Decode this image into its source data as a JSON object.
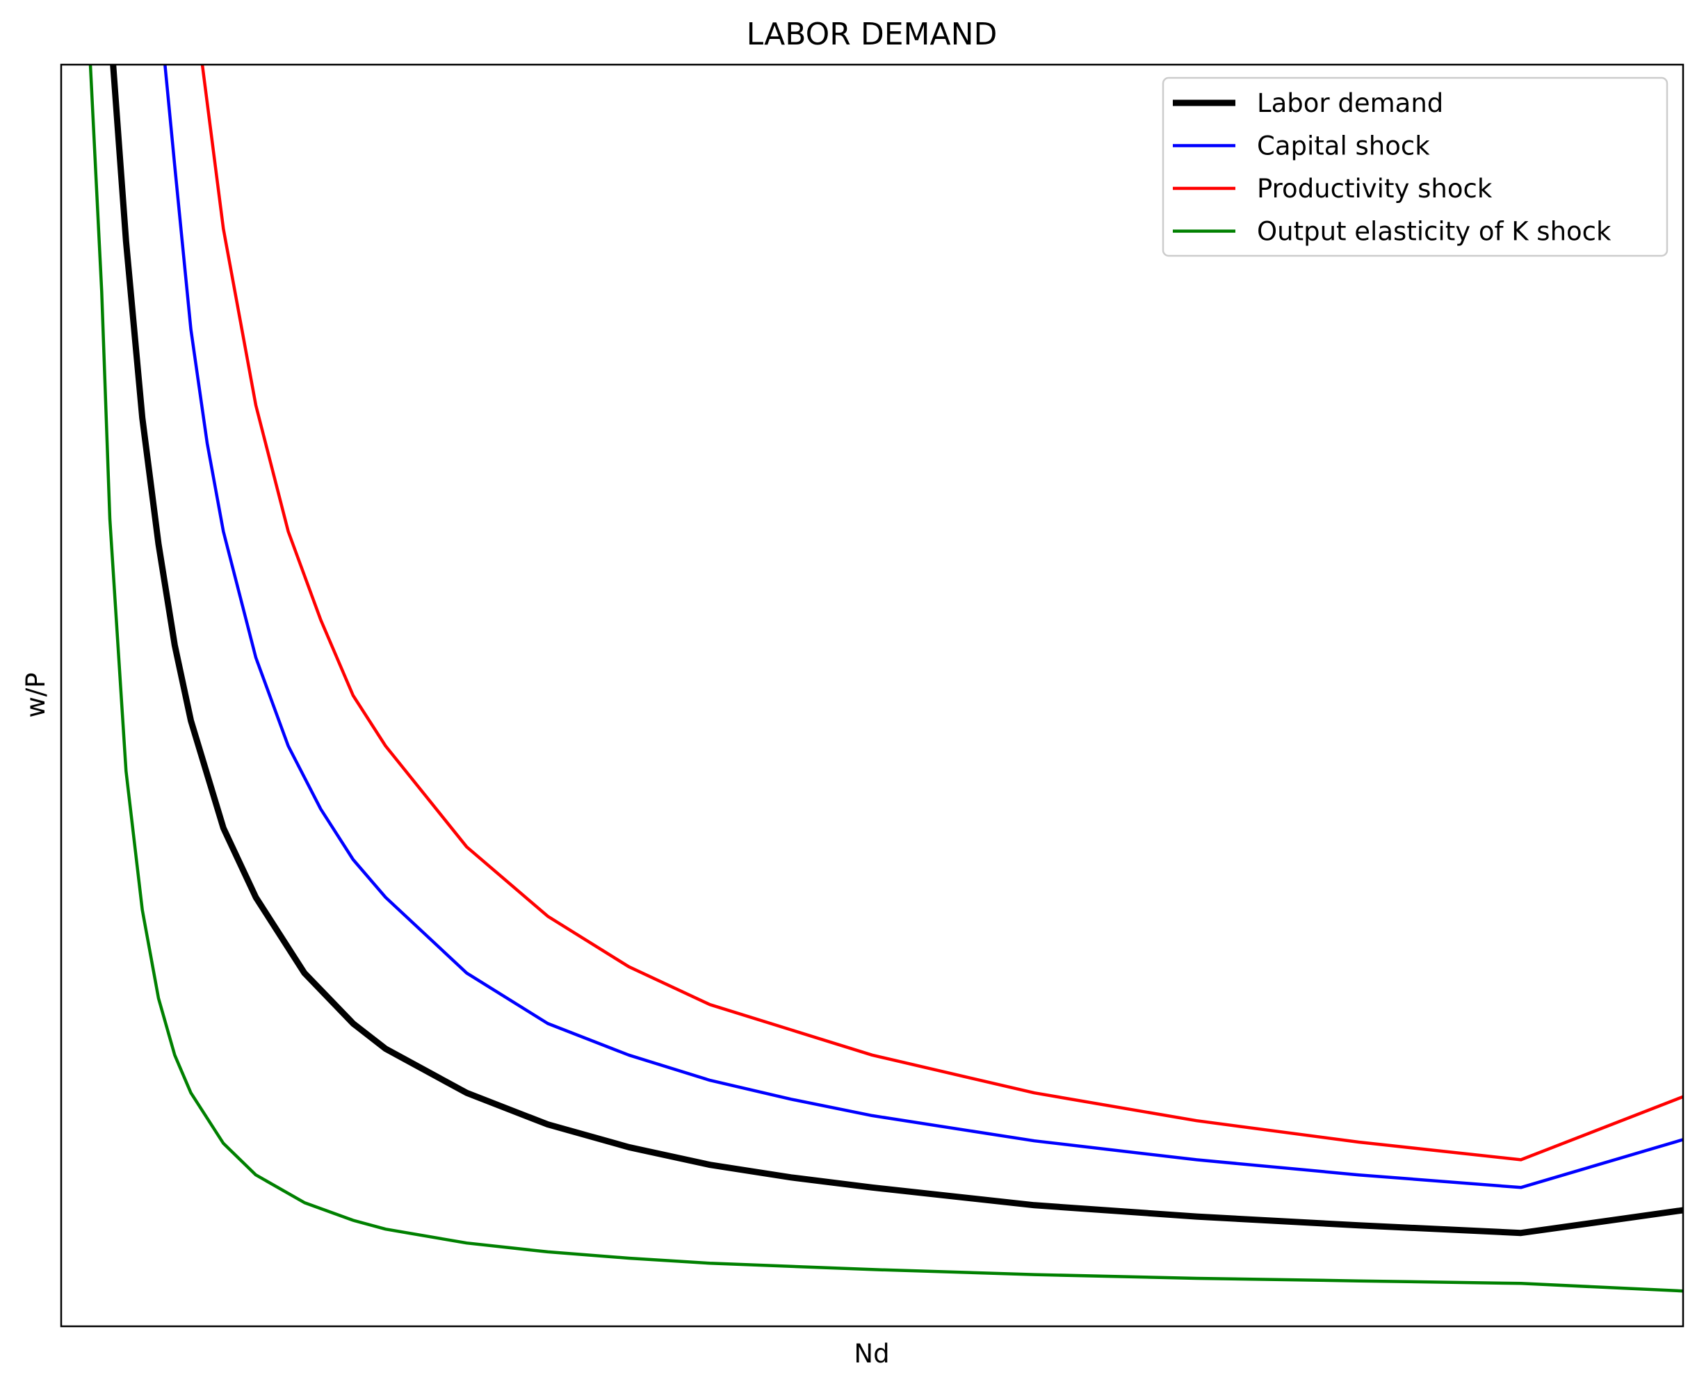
{
  "chart_data": {
    "type": "line",
    "title": "LABOR DEMAND",
    "xlabel": "Nd",
    "ylabel": "w/P",
    "xticks": [],
    "yticks": [],
    "grid": false,
    "legend_position": "top-right",
    "xlim": [
      0,
      100
    ],
    "ylim": [
      0,
      100
    ],
    "series": [
      {
        "name": "Labor demand",
        "color": "#000000",
        "x": [
          3.2,
          4,
          5,
          6,
          7,
          8,
          10,
          12,
          15,
          18,
          20,
          25,
          30,
          35,
          40,
          45,
          50,
          60,
          70,
          80,
          90,
          100
        ],
        "y": [
          100,
          86,
          72,
          62,
          54,
          48,
          39.5,
          34,
          28,
          24,
          22,
          18.5,
          16,
          14.2,
          12.8,
          11.8,
          11,
          9.6,
          8.7,
          8.0,
          7.4,
          9.2
        ]
      },
      {
        "name": "Capital shock",
        "color": "#0000ff",
        "x": [
          6.4,
          7,
          8,
          9,
          10,
          12,
          14,
          16,
          18,
          20,
          25,
          30,
          35,
          40,
          45,
          50,
          60,
          70,
          80,
          90,
          100
        ],
        "y": [
          100,
          92,
          79,
          70,
          63,
          53,
          46,
          41,
          37,
          34,
          28,
          24,
          21.5,
          19.5,
          18,
          16.7,
          14.7,
          13.2,
          12.0,
          11.0,
          14.8
        ]
      },
      {
        "name": "Productivity shock",
        "color": "#ff0000",
        "x": [
          8.7,
          10,
          12,
          14,
          16,
          18,
          20,
          25,
          30,
          35,
          40,
          45,
          50,
          60,
          70,
          80,
          90,
          100
        ],
        "y": [
          100,
          87,
          73,
          63,
          56,
          50,
          46,
          38,
          32.5,
          28.5,
          25.5,
          23.5,
          21.5,
          18.5,
          16.3,
          14.6,
          13.2,
          18.2
        ]
      },
      {
        "name": "Output elasticity of K shock",
        "color": "#008000",
        "x": [
          1.8,
          2.5,
          3,
          4,
          5,
          6,
          7,
          8,
          10,
          12,
          15,
          18,
          20,
          25,
          30,
          35,
          40,
          50,
          60,
          70,
          80,
          90,
          100
        ],
        "y": [
          100,
          82,
          64,
          44,
          33,
          26,
          21.5,
          18.5,
          14.5,
          12,
          9.8,
          8.4,
          7.7,
          6.6,
          5.9,
          5.4,
          5.0,
          4.5,
          4.1,
          3.8,
          3.6,
          3.4,
          2.8
        ]
      }
    ]
  }
}
